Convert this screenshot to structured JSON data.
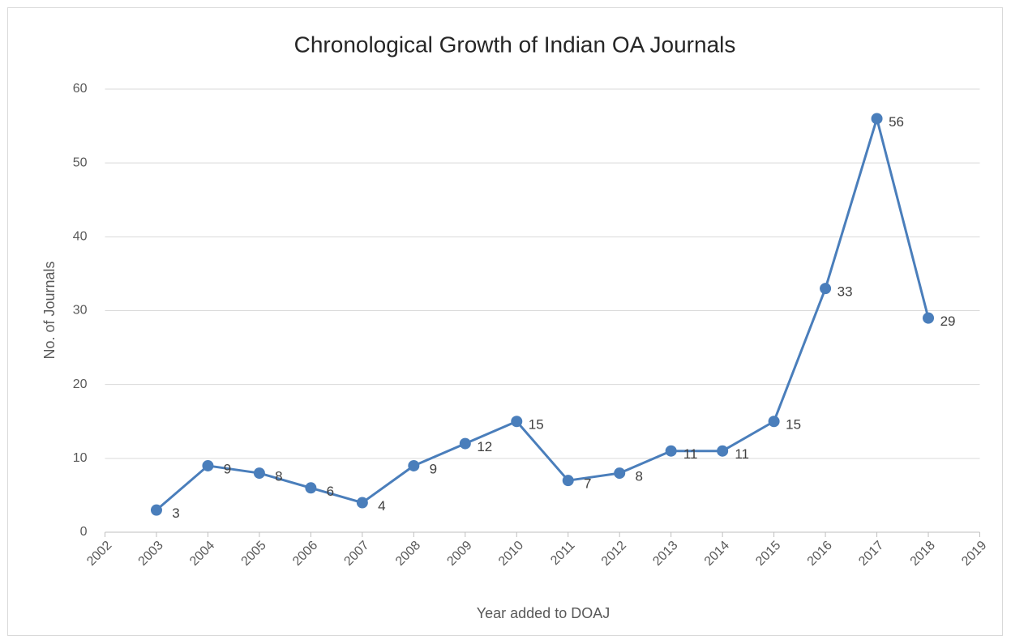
{
  "chart_data": {
    "type": "line",
    "title": "Chronological Growth of Indian OA Journals",
    "xlabel": "Year added to DOAJ",
    "ylabel": "No. of Journals",
    "x": [
      2003,
      2004,
      2005,
      2006,
      2007,
      2008,
      2009,
      2010,
      2011,
      2012,
      2013,
      2014,
      2015,
      2016,
      2017,
      2018
    ],
    "series": [
      {
        "name": "No. of Journals",
        "color": "#4a7ebb",
        "values": [
          3,
          9,
          8,
          6,
          4,
          9,
          12,
          15,
          7,
          8,
          11,
          11,
          15,
          33,
          56,
          29
        ]
      }
    ],
    "xlim": [
      2002,
      2019
    ],
    "xticks": [
      2002,
      2003,
      2004,
      2005,
      2006,
      2007,
      2008,
      2009,
      2010,
      2011,
      2012,
      2013,
      2014,
      2015,
      2016,
      2017,
      2018,
      2019
    ],
    "ylim": [
      0,
      60
    ],
    "yticks": [
      0,
      10,
      20,
      30,
      40,
      50,
      60
    ],
    "grid": true
  }
}
